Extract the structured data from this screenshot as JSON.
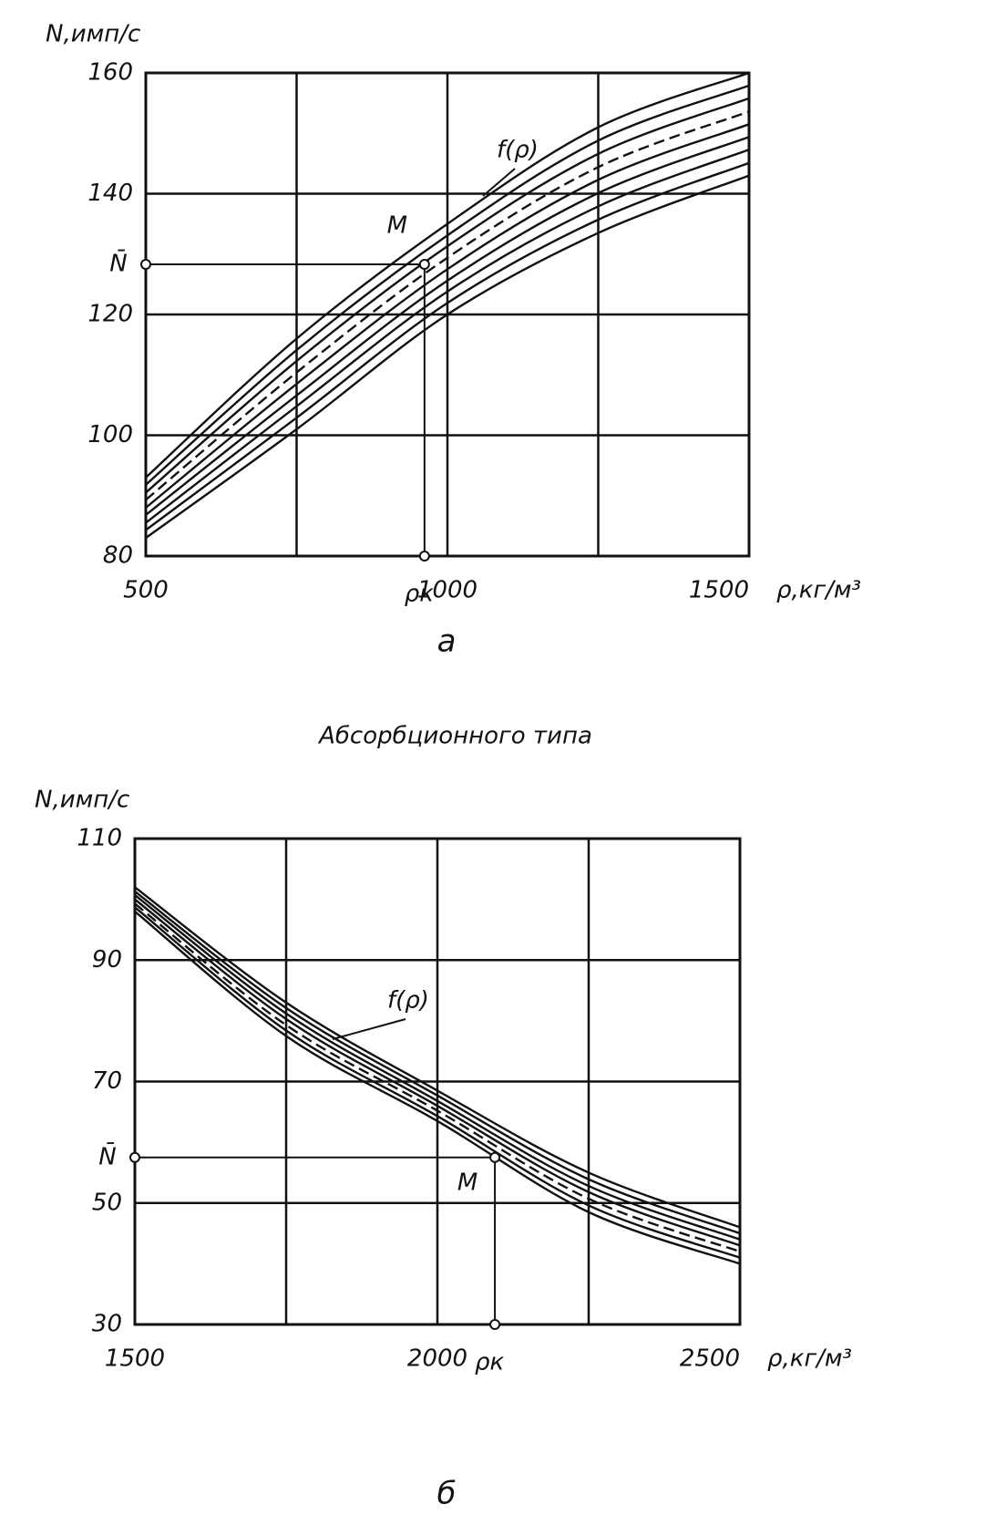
{
  "chart_data": [
    {
      "type": "line",
      "ylabel": "N,имп/с",
      "xlabel": "ρ,кг/м³",
      "caption": "а",
      "x": [
        500,
        750,
        1000,
        1250,
        1500
      ],
      "xlim": [
        500,
        1500
      ],
      "xticks": [
        500,
        1000,
        1500
      ],
      "xgrid": [
        750,
        1250
      ],
      "ylim": [
        80,
        160
      ],
      "yticks": [
        80,
        100,
        120,
        140,
        160
      ],
      "grid": true,
      "series": [
        {
          "color": "#111",
          "dashed": false,
          "values": [
            83,
            101,
            120,
            133.5,
            143
          ]
        },
        {
          "color": "#111",
          "dashed": false,
          "values": [
            84.3,
            102.9,
            121.9,
            135.7,
            145.1
          ]
        },
        {
          "color": "#111",
          "dashed": false,
          "values": [
            85.5,
            104.8,
            123.8,
            137.9,
            147.3
          ]
        },
        {
          "color": "#111",
          "dashed": false,
          "values": [
            86.8,
            106.6,
            125.6,
            140.1,
            149.4
          ]
        },
        {
          "color": "#111",
          "dashed": false,
          "values": [
            88,
            108.5,
            127.5,
            142.3,
            151.5
          ]
        },
        {
          "color": "#111",
          "dashed": true,
          "values": [
            89.3,
            110.4,
            129.4,
            144.4,
            153.6
          ]
        },
        {
          "color": "#111",
          "dashed": false,
          "values": [
            90.5,
            112.3,
            131.3,
            146.6,
            155.8
          ]
        },
        {
          "color": "#111",
          "dashed": false,
          "values": [
            91.8,
            114.1,
            133.1,
            148.8,
            157.9
          ]
        },
        {
          "color": "#111",
          "dashed": false,
          "values": [
            93,
            116,
            135,
            151,
            160
          ]
        }
      ],
      "mean_label": "N̄",
      "mean_value": 128.3,
      "rho_label": "ρк",
      "rho_value": 962,
      "point_label": "M",
      "curve_label": "f(ρ)"
    },
    {
      "type": "line",
      "title": "Абсорбционного типа",
      "ylabel": "N,имп/с",
      "xlabel": "ρ,кг/м³",
      "caption": "б",
      "x": [
        1500,
        1750,
        2000,
        2250,
        2500
      ],
      "xlim": [
        1500,
        2500
      ],
      "xticks": [
        1500,
        2000,
        2500
      ],
      "xgrid": [
        1750,
        2250
      ],
      "ylim": [
        30,
        110
      ],
      "yticks": [
        30,
        50,
        70,
        90,
        110
      ],
      "grid": true,
      "series": [
        {
          "color": "#111",
          "dashed": false,
          "values": [
            98,
            77.5,
            63.5,
            48.5,
            40
          ]
        },
        {
          "color": "#111",
          "dashed": false,
          "values": [
            98.7,
            78.4,
            64.3,
            49.6,
            41
          ]
        },
        {
          "color": "#111",
          "dashed": true,
          "values": [
            99.3,
            79.3,
            65.2,
            50.7,
            42
          ]
        },
        {
          "color": "#111",
          "dashed": false,
          "values": [
            100,
            80.3,
            66,
            51.8,
            43
          ]
        },
        {
          "color": "#111",
          "dashed": false,
          "values": [
            100.7,
            81.2,
            66.8,
            52.8,
            44
          ]
        },
        {
          "color": "#111",
          "dashed": false,
          "values": [
            101.3,
            82.1,
            67.7,
            53.9,
            45
          ]
        },
        {
          "color": "#111",
          "dashed": false,
          "values": [
            102,
            83,
            68.5,
            55,
            46
          ]
        }
      ],
      "mean_label": "N̄",
      "mean_value": 57.5,
      "rho_label": "ρк",
      "rho_value": 2095,
      "point_label": "M",
      "curve_label": "f(ρ)"
    }
  ]
}
